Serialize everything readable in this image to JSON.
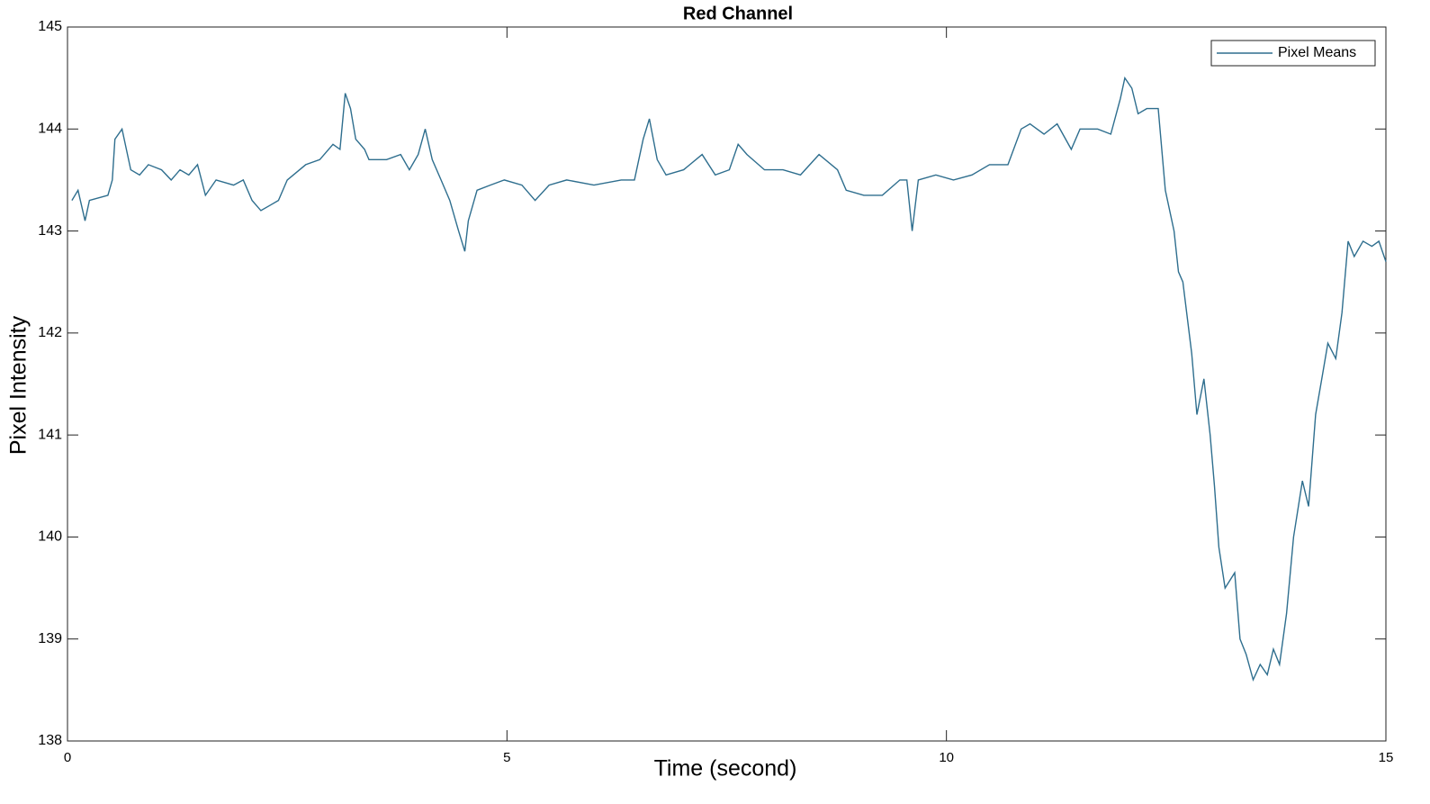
{
  "chart_data": {
    "type": "line",
    "title": "Red Channel",
    "x_label": "Time (second)",
    "y_label": "Pixel Intensity",
    "x": [
      0.05,
      0.12,
      0.2,
      0.25,
      0.46,
      0.51,
      0.54,
      0.62,
      0.72,
      0.82,
      0.92,
      1.07,
      1.18,
      1.28,
      1.38,
      1.48,
      1.57,
      1.69,
      1.89,
      2.0,
      2.1,
      2.2,
      2.3,
      2.4,
      2.5,
      2.71,
      2.87,
      3.02,
      3.1,
      3.16,
      3.22,
      3.28,
      3.38,
      3.43,
      3.63,
      3.79,
      3.89,
      3.99,
      4.07,
      4.15,
      4.25,
      4.35,
      4.45,
      4.52,
      4.56,
      4.66,
      4.81,
      4.97,
      5.17,
      5.32,
      5.48,
      5.68,
      5.99,
      6.3,
      6.45,
      6.55,
      6.62,
      6.71,
      6.81,
      7.01,
      7.22,
      7.37,
      7.53,
      7.63,
      7.73,
      7.93,
      8.14,
      8.34,
      8.55,
      8.76,
      8.86,
      9.06,
      9.27,
      9.47,
      9.55,
      9.61,
      9.68,
      9.88,
      10.08,
      10.29,
      10.49,
      10.7,
      10.85,
      10.95,
      11.11,
      11.26,
      11.42,
      11.52,
      11.72,
      11.87,
      11.98,
      12.03,
      12.11,
      12.18,
      12.28,
      12.41,
      12.49,
      12.59,
      12.64,
      12.69,
      12.79,
      12.85,
      12.93,
      13.0,
      13.05,
      13.1,
      13.17,
      13.28,
      13.34,
      13.41,
      13.49,
      13.57,
      13.65,
      13.72,
      13.79,
      13.87,
      13.95,
      14.05,
      14.12,
      14.2,
      14.28,
      14.34,
      14.43,
      14.5,
      14.57,
      14.64,
      14.74,
      14.84,
      14.92,
      15.0
    ],
    "series": [
      {
        "name": "Pixel Means",
        "color": "#2e6e8e",
        "values": [
          143.3,
          143.4,
          143.1,
          143.3,
          143.35,
          143.5,
          143.9,
          144.0,
          143.6,
          143.55,
          143.65,
          143.6,
          143.5,
          143.6,
          143.55,
          143.65,
          143.35,
          143.5,
          143.45,
          143.5,
          143.3,
          143.2,
          143.25,
          143.3,
          143.5,
          143.65,
          143.7,
          143.85,
          143.8,
          144.35,
          144.2,
          143.9,
          143.8,
          143.7,
          143.7,
          143.75,
          143.6,
          143.75,
          144.0,
          143.7,
          143.5,
          143.3,
          143.0,
          142.8,
          143.1,
          143.4,
          143.45,
          143.5,
          143.45,
          143.3,
          143.45,
          143.5,
          143.45,
          143.5,
          143.5,
          143.9,
          144.1,
          143.7,
          143.55,
          143.6,
          143.75,
          143.55,
          143.6,
          143.85,
          143.75,
          143.6,
          143.6,
          143.55,
          143.75,
          143.6,
          143.4,
          143.35,
          143.35,
          143.5,
          143.5,
          143.0,
          143.5,
          143.55,
          143.5,
          143.55,
          143.65,
          143.65,
          144.0,
          144.05,
          143.95,
          144.05,
          143.8,
          144.0,
          144.0,
          143.95,
          144.3,
          144.5,
          144.4,
          144.15,
          144.2,
          144.2,
          143.4,
          143.0,
          142.6,
          142.5,
          141.8,
          141.2,
          141.55,
          141.0,
          140.5,
          139.9,
          139.5,
          139.65,
          139.0,
          138.85,
          138.6,
          138.75,
          138.65,
          138.9,
          138.75,
          139.25,
          140.0,
          140.55,
          140.3,
          141.2,
          141.6,
          141.9,
          141.75,
          142.2,
          142.9,
          142.75,
          142.9,
          142.85,
          142.9,
          142.7
        ]
      }
    ],
    "xlim": [
      0,
      15
    ],
    "xticks": [
      0,
      5,
      10,
      15
    ],
    "ylim": [
      138,
      145
    ],
    "yticks": [
      138,
      139,
      140,
      141,
      142,
      143,
      144,
      145
    ],
    "legend": "upper right"
  }
}
